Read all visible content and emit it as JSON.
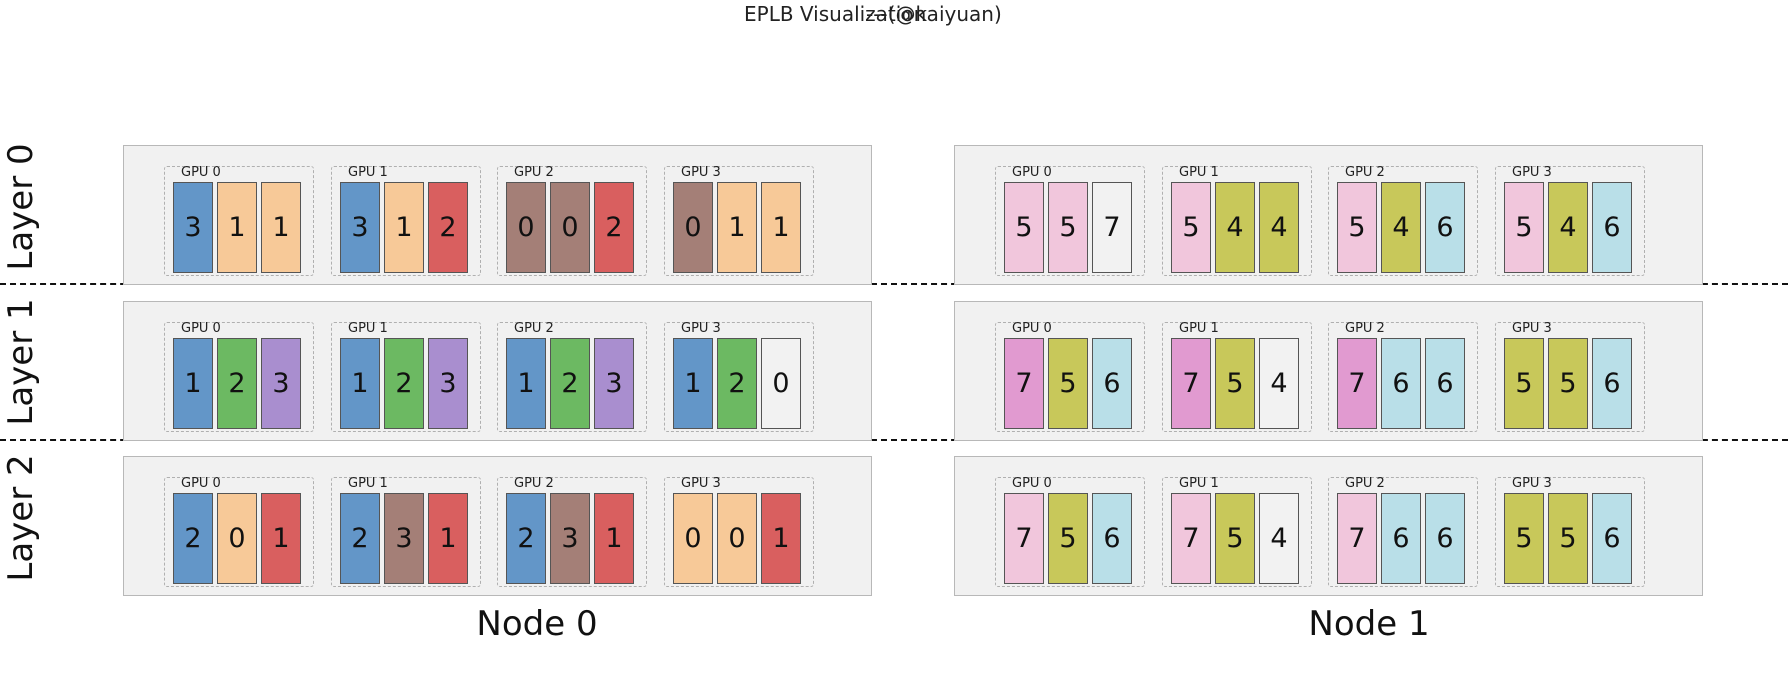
{
  "title": "EPLB Visualization",
  "author": "---(@kaiyuan)",
  "layers": [
    "Layer 0",
    "Layer 1",
    "Layer 2"
  ],
  "nodes": [
    "Node 0",
    "Node 1"
  ],
  "gpu_labels": [
    "GPU 0",
    "GPU 1",
    "GPU 2",
    "GPU 3"
  ],
  "expert_colors": {
    "0": "#a47f77",
    "1": "#f7c998",
    "2": "#d95f5f",
    "3": "#6396c8",
    "4": "#c8c85a",
    "5": "#f1c6dc",
    "6": "#b9dfe8",
    "7": "#f2f2f2"
  },
  "grid": [
    [
      [
        [
          [
            3,
            1,
            1
          ],
          [
            3,
            1,
            2
          ],
          [
            0,
            0,
            2
          ],
          [
            0,
            1,
            1
          ]
        ],
        [
          "#6396c8",
          "#f7c998",
          "#f7c998"
        ],
        [
          "#6396c8",
          "#f7c998",
          "#d95f5f"
        ],
        [
          "#a47f77",
          "#a47f77",
          "#d95f5f"
        ],
        [
          "#a47f77",
          "#f7c998",
          "#f7c998"
        ]
      ],
      [
        [
          [
            5,
            5,
            7
          ],
          [
            5,
            4,
            4
          ],
          [
            5,
            4,
            6
          ],
          [
            5,
            4,
            6
          ]
        ],
        [
          "#f1c6dc",
          "#f1c6dc",
          "#f2f2f2"
        ],
        [
          "#f1c6dc",
          "#c8c85a",
          "#c8c85a"
        ],
        [
          "#f1c6dc",
          "#c8c85a",
          "#b9dfe8"
        ],
        [
          "#f1c6dc",
          "#c8c85a",
          "#b9dfe8"
        ]
      ]
    ],
    [
      [
        [
          [
            1,
            2,
            3
          ],
          [
            1,
            2,
            3
          ],
          [
            1,
            2,
            3
          ],
          [
            1,
            2,
            0
          ]
        ],
        [
          "#6396c8",
          "#6cb962",
          "#a98ecf"
        ],
        [
          "#6396c8",
          "#6cb962",
          "#a98ecf"
        ],
        [
          "#6396c8",
          "#6cb962",
          "#a98ecf"
        ],
        [
          "#6396c8",
          "#6cb962",
          "#f2f2f2"
        ]
      ],
      [
        [
          [
            7,
            5,
            6
          ],
          [
            7,
            5,
            4
          ],
          [
            7,
            6,
            6
          ],
          [
            5,
            5,
            6
          ]
        ],
        [
          "#e19ad0",
          "#c8c85a",
          "#b9dfe8"
        ],
        [
          "#e19ad0",
          "#c8c85a",
          "#f2f2f2"
        ],
        [
          "#e19ad0",
          "#b9dfe8",
          "#b9dfe8"
        ],
        [
          "#c8c85a",
          "#c8c85a",
          "#b9dfe8"
        ]
      ]
    ],
    [
      [
        [
          [
            2,
            0,
            1
          ],
          [
            2,
            3,
            1
          ],
          [
            2,
            3,
            1
          ],
          [
            0,
            0,
            1
          ]
        ],
        [
          "#6396c8",
          "#f7c998",
          "#d95f5f"
        ],
        [
          "#6396c8",
          "#a47f77",
          "#d95f5f"
        ],
        [
          "#6396c8",
          "#a47f77",
          "#d95f5f"
        ],
        [
          "#f7c998",
          "#f7c998",
          "#d95f5f"
        ]
      ],
      [
        [
          [
            7,
            5,
            6
          ],
          [
            7,
            5,
            4
          ],
          [
            7,
            6,
            6
          ],
          [
            5,
            5,
            6
          ]
        ],
        [
          "#f1c6dc",
          "#c8c85a",
          "#b9dfe8"
        ],
        [
          "#f1c6dc",
          "#c8c85a",
          "#f2f2f2"
        ],
        [
          "#f1c6dc",
          "#b9dfe8",
          "#b9dfe8"
        ],
        [
          "#c8c85a",
          "#c8c85a",
          "#b9dfe8"
        ]
      ]
    ]
  ]
}
